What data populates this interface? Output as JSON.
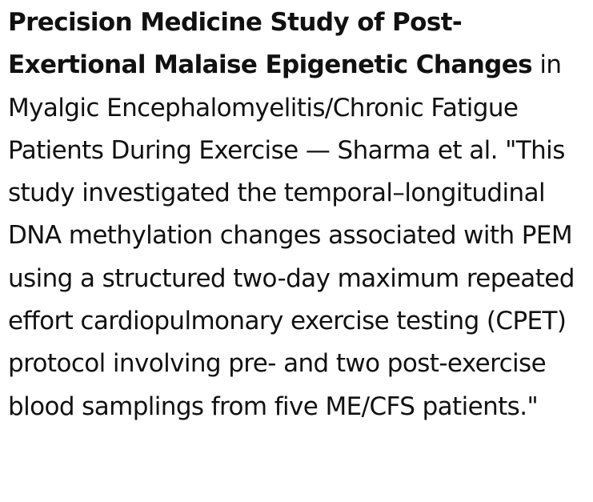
{
  "document": {
    "title": "Precision Medicine Study of Post-Exertional Malaise Epigenetic Changes",
    "title_continuation": "in Myalgic Encephalomyelitis/Chronic Fatigue Patients During Exercise",
    "separator": "—",
    "authors": "Sharma et al.",
    "quote": "\"This study investigated the temporal–longitudinal DNA methylation changes associated with PEM using a structured two-day maximum repeated effort cardiopulmonary exercise testing (CPET) protocol involving pre- and two post-exercise blood samplings from five ME/CFS patients.\""
  }
}
